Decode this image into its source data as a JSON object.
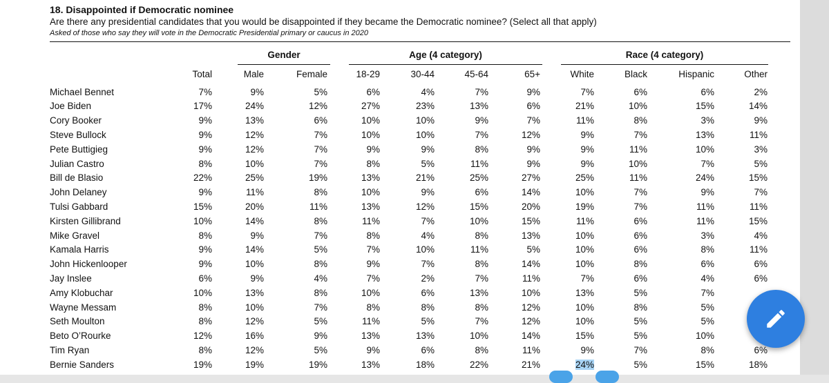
{
  "header": {
    "title": "18. Disappointed if Democratic nominee",
    "question": "Are there any presidential candidates that you would be disappointed if they became the Democratic nominee? (Select all that apply)",
    "subtitle": "Asked of those who say they will vote in the Democratic Presidential primary or caucus in 2020"
  },
  "groups": {
    "gender": "Gender",
    "age": "Age (4 category)",
    "race": "Race (4 category)"
  },
  "columns": [
    "Total",
    "Male",
    "Female",
    "18-29",
    "30-44",
    "45-64",
    "65+",
    "White",
    "Black",
    "Hispanic",
    "Other"
  ],
  "rows": [
    {
      "name": "Michael Bennet",
      "values": [
        "7%",
        "9%",
        "5%",
        "6%",
        "4%",
        "7%",
        "9%",
        "7%",
        "6%",
        "6%",
        "2%"
      ]
    },
    {
      "name": "Joe Biden",
      "values": [
        "17%",
        "24%",
        "12%",
        "27%",
        "23%",
        "13%",
        "6%",
        "21%",
        "10%",
        "15%",
        "14%"
      ]
    },
    {
      "name": "Cory Booker",
      "values": [
        "9%",
        "13%",
        "6%",
        "10%",
        "10%",
        "9%",
        "7%",
        "11%",
        "8%",
        "3%",
        "9%"
      ]
    },
    {
      "name": "Steve Bullock",
      "values": [
        "9%",
        "12%",
        "7%",
        "10%",
        "10%",
        "7%",
        "12%",
        "9%",
        "7%",
        "13%",
        "11%"
      ]
    },
    {
      "name": "Pete Buttigieg",
      "values": [
        "9%",
        "12%",
        "7%",
        "9%",
        "9%",
        "8%",
        "9%",
        "9%",
        "11%",
        "10%",
        "3%"
      ]
    },
    {
      "name": "Julian Castro",
      "values": [
        "8%",
        "10%",
        "7%",
        "8%",
        "5%",
        "11%",
        "9%",
        "9%",
        "10%",
        "7%",
        "5%"
      ]
    },
    {
      "name": "Bill de Blasio",
      "values": [
        "22%",
        "25%",
        "19%",
        "13%",
        "21%",
        "25%",
        "27%",
        "25%",
        "11%",
        "24%",
        "15%"
      ]
    },
    {
      "name": "John Delaney",
      "values": [
        "9%",
        "11%",
        "8%",
        "10%",
        "9%",
        "6%",
        "14%",
        "10%",
        "7%",
        "9%",
        "7%"
      ]
    },
    {
      "name": "Tulsi Gabbard",
      "values": [
        "15%",
        "20%",
        "11%",
        "13%",
        "12%",
        "15%",
        "20%",
        "19%",
        "7%",
        "11%",
        "11%"
      ]
    },
    {
      "name": "Kirsten Gillibrand",
      "values": [
        "10%",
        "14%",
        "8%",
        "11%",
        "7%",
        "10%",
        "15%",
        "11%",
        "6%",
        "11%",
        "15%"
      ]
    },
    {
      "name": "Mike Gravel",
      "values": [
        "8%",
        "9%",
        "7%",
        "8%",
        "4%",
        "8%",
        "13%",
        "10%",
        "6%",
        "3%",
        "4%"
      ]
    },
    {
      "name": "Kamala Harris",
      "values": [
        "9%",
        "14%",
        "5%",
        "7%",
        "10%",
        "11%",
        "5%",
        "10%",
        "6%",
        "8%",
        "11%"
      ]
    },
    {
      "name": "John Hickenlooper",
      "values": [
        "9%",
        "10%",
        "8%",
        "9%",
        "7%",
        "8%",
        "14%",
        "10%",
        "8%",
        "6%",
        "6%"
      ]
    },
    {
      "name": "Jay Inslee",
      "values": [
        "6%",
        "9%",
        "4%",
        "7%",
        "2%",
        "7%",
        "11%",
        "7%",
        "6%",
        "4%",
        "6%"
      ]
    },
    {
      "name": "Amy Klobuchar",
      "values": [
        "10%",
        "13%",
        "8%",
        "10%",
        "6%",
        "13%",
        "10%",
        "13%",
        "5%",
        "7%",
        ""
      ]
    },
    {
      "name": "Wayne Messam",
      "values": [
        "8%",
        "10%",
        "7%",
        "8%",
        "8%",
        "8%",
        "12%",
        "10%",
        "8%",
        "5%",
        ""
      ]
    },
    {
      "name": "Seth Moulton",
      "values": [
        "8%",
        "12%",
        "5%",
        "11%",
        "5%",
        "7%",
        "12%",
        "10%",
        "5%",
        "5%",
        ""
      ]
    },
    {
      "name": "Beto O’Rourke",
      "values": [
        "12%",
        "16%",
        "9%",
        "13%",
        "13%",
        "10%",
        "14%",
        "15%",
        "5%",
        "10%",
        ""
      ]
    },
    {
      "name": "Tim Ryan",
      "values": [
        "8%",
        "12%",
        "5%",
        "9%",
        "6%",
        "8%",
        "11%",
        "9%",
        "7%",
        "8%",
        "6%"
      ]
    },
    {
      "name": "Bernie Sanders",
      "values": [
        "19%",
        "19%",
        "19%",
        "13%",
        "18%",
        "22%",
        "21%",
        "24%",
        "5%",
        "15%",
        "18%"
      ]
    }
  ],
  "edit_fab": {
    "icon": "pencil-icon",
    "color": "#2e7fe0"
  }
}
